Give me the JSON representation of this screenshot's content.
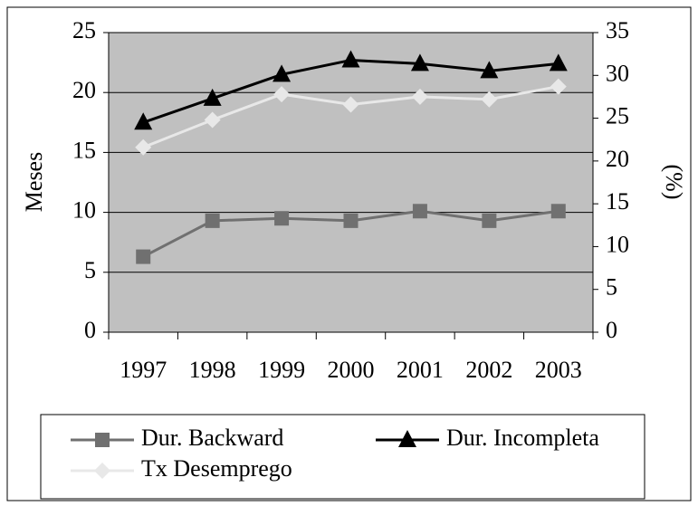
{
  "chart_data": {
    "type": "line",
    "categories": [
      "1997",
      "1998",
      "1999",
      "2000",
      "2001",
      "2002",
      "2003"
    ],
    "y_label": "Meses",
    "y2_label": "(%)",
    "ylim": [
      0,
      25
    ],
    "yticks": [
      0,
      5,
      10,
      15,
      20,
      25
    ],
    "y2lim": [
      0,
      35
    ],
    "y2ticks": [
      0,
      5,
      10,
      15,
      20,
      25,
      30,
      35
    ],
    "grid": true,
    "legend": "bottom",
    "plot_background": "#c0c0c0",
    "series": [
      {
        "name": "Dur. Backward",
        "color": "#707070",
        "marker": "square",
        "values": [
          6.3,
          9.3,
          9.5,
          9.3,
          10.1,
          9.3,
          10.1
        ]
      },
      {
        "name": "Dur. Incompleta",
        "color": "#000000",
        "marker": "triangle",
        "values": [
          17.5,
          19.5,
          21.5,
          22.7,
          22.4,
          21.8,
          22.4
        ]
      },
      {
        "name": "Tx Desemprego",
        "color": "#e8e8e8",
        "marker": "diamond",
        "axis": "y2",
        "values": [
          21.6,
          24.8,
          27.8,
          26.6,
          27.5,
          27.2,
          28.7
        ]
      }
    ]
  }
}
